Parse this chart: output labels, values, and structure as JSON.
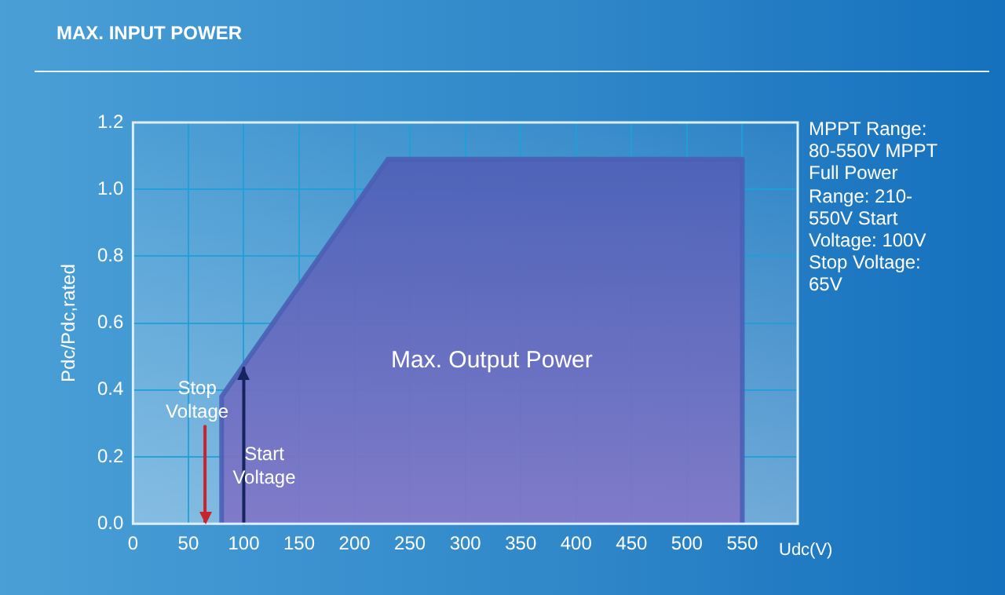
{
  "chart_data": {
    "type": "area",
    "title": "MAX. INPUT POWER",
    "xlabel": "Udc(V)",
    "ylabel": "Pdc/Pdc,rated",
    "x": [
      80,
      80,
      230,
      550,
      550
    ],
    "series": [
      {
        "color": "#4a5fb5",
        "values": [
          0,
          0.38,
          1.09,
          1.09,
          0
        ]
      }
    ],
    "xlim": [
      0,
      600
    ],
    "xticks": [
      0,
      50,
      100,
      150,
      200,
      250,
      300,
      350,
      400,
      450,
      500,
      550
    ],
    "ylim": [
      0,
      1.2
    ],
    "yticks": [
      {
        "value": 0,
        "label": "0.0"
      },
      {
        "value": 0.2,
        "label": "0.2"
      },
      {
        "value": 0.4,
        "label": "0.4"
      },
      {
        "value": 0.6,
        "label": "0.6"
      },
      {
        "value": 0.8,
        "label": "0.8"
      },
      {
        "value": 1,
        "label": "1.0"
      },
      {
        "value": 1.2,
        "label": "1.2"
      }
    ],
    "ref_lines": [
      {
        "axis": "x",
        "value": 65,
        "label": "Stop Voltage",
        "color": "#c8242b"
      },
      {
        "axis": "x",
        "value": 100,
        "label": "Start Voltage",
        "color": "#15235e"
      }
    ],
    "annotations": [
      "Max. Output Power",
      "MPPT Range: 80-550V MPPT Full Power Range: 210-550V Start Voltage: 100V Stop Voltage: 65V"
    ],
    "grid": true,
    "legend": false,
    "marker": "none"
  }
}
